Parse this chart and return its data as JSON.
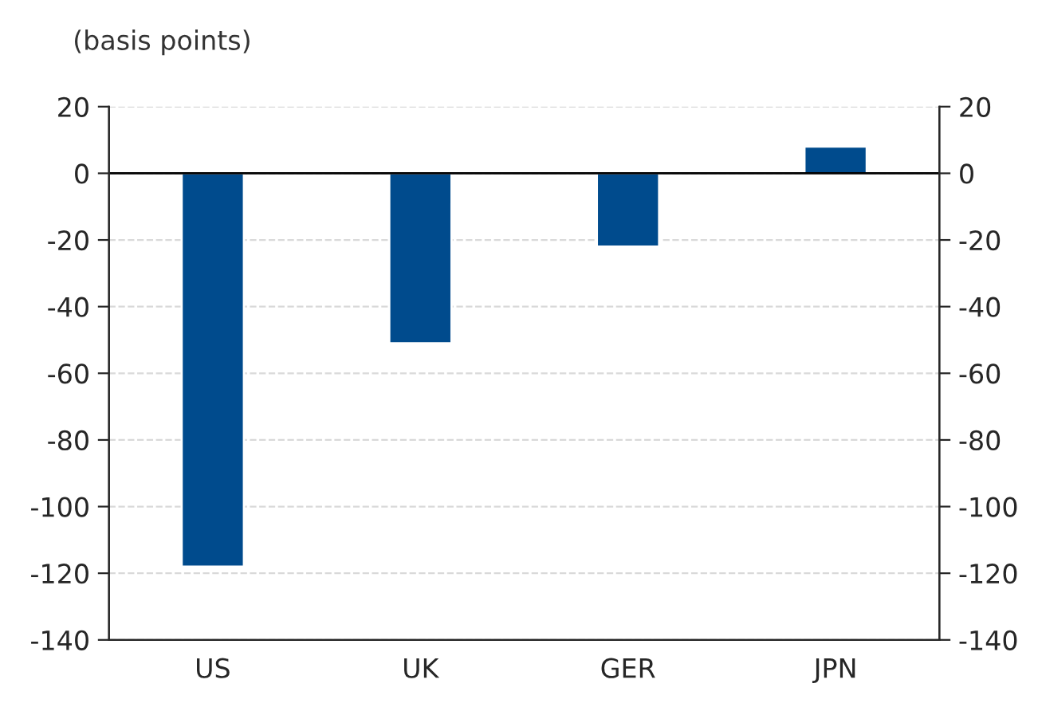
{
  "chart_data": {
    "type": "bar",
    "subtitle": "(basis points)",
    "categories": [
      "US",
      "UK",
      "GER",
      "JPN"
    ],
    "series": [
      {
        "color": "#004b8d",
        "values": [
          -118,
          -51,
          -22,
          8
        ]
      }
    ],
    "ylim": [
      -140,
      20
    ],
    "yticks": [
      -140,
      -120,
      -100,
      -80,
      -60,
      -40,
      -20,
      0,
      20
    ],
    "y2lim": [
      -140,
      20
    ],
    "y2ticks": [
      -140,
      -120,
      -100,
      -80,
      -60,
      -40,
      -20,
      0,
      20
    ],
    "grid": "y",
    "legend": false
  }
}
